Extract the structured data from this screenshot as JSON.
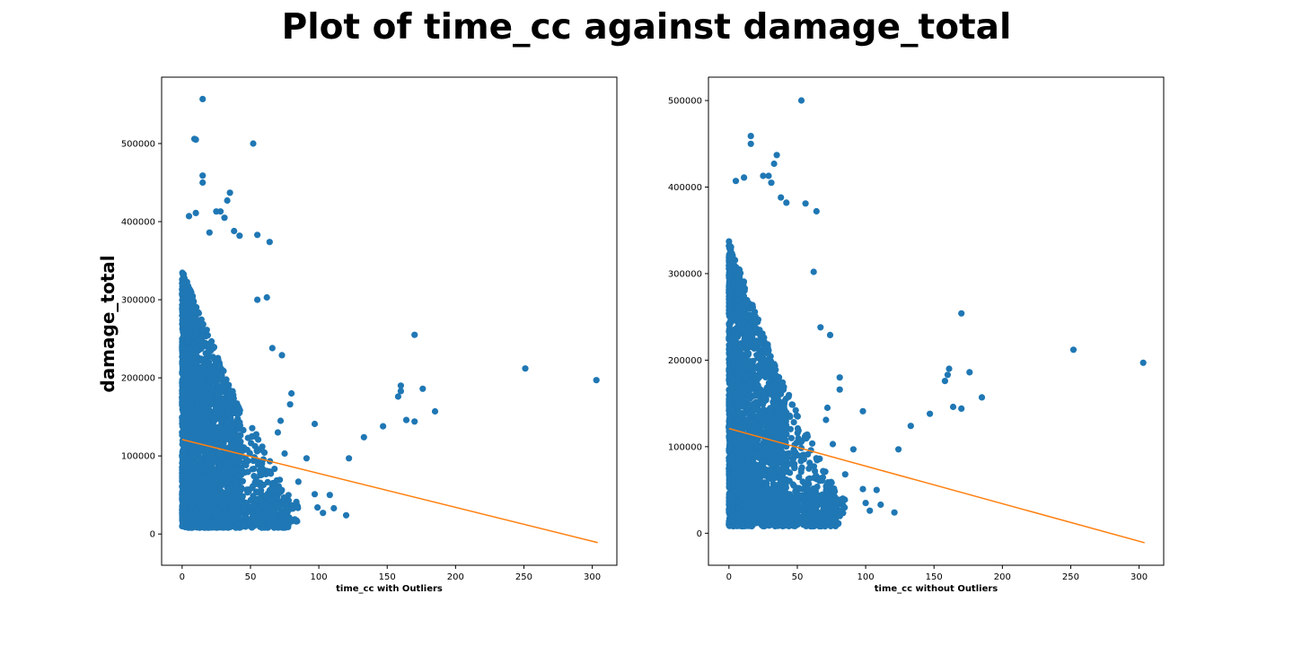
{
  "title": "Plot of time_cc against damage_total",
  "colors": {
    "points": "#1f77b4",
    "fit_line": "#ff7f0e"
  },
  "chart_data": [
    {
      "type": "scatter",
      "xlabel": "time_cc with Outliers",
      "ylabel": "damage_total",
      "xlim": [
        -15,
        318
      ],
      "ylim": [
        -40000,
        585000
      ],
      "xticks": [
        "0",
        "50",
        "100",
        "150",
        "200",
        "250",
        "300"
      ],
      "yticks": [
        "0",
        "100000",
        "200000",
        "300000",
        "400000",
        "500000"
      ],
      "grid": false,
      "fit_line": {
        "x": [
          0,
          304
        ],
        "y": [
          121000,
          -11000
        ]
      },
      "outliers": [
        {
          "x": 15,
          "y": 557000
        },
        {
          "x": 9,
          "y": 506000
        },
        {
          "x": 10,
          "y": 505000
        },
        {
          "x": 52,
          "y": 500000
        },
        {
          "x": 15,
          "y": 459000
        },
        {
          "x": 15,
          "y": 450000
        },
        {
          "x": 35,
          "y": 437000
        },
        {
          "x": 33,
          "y": 427000
        },
        {
          "x": 25,
          "y": 413000
        },
        {
          "x": 28,
          "y": 413000
        },
        {
          "x": 10,
          "y": 411000
        },
        {
          "x": 5,
          "y": 407000
        },
        {
          "x": 31,
          "y": 405000
        },
        {
          "x": 38,
          "y": 388000
        },
        {
          "x": 20,
          "y": 386000
        },
        {
          "x": 64,
          "y": 374000
        },
        {
          "x": 55,
          "y": 383000
        },
        {
          "x": 42,
          "y": 382000
        },
        {
          "x": 1,
          "y": 330000
        },
        {
          "x": 0,
          "y": 308000
        },
        {
          "x": 62,
          "y": 303000
        },
        {
          "x": 55,
          "y": 300000
        },
        {
          "x": 170,
          "y": 255000
        },
        {
          "x": 251,
          "y": 212000
        },
        {
          "x": 303,
          "y": 197000
        },
        {
          "x": 160,
          "y": 190000
        },
        {
          "x": 176,
          "y": 186000
        },
        {
          "x": 160,
          "y": 183000
        },
        {
          "x": 158,
          "y": 176000
        },
        {
          "x": 185,
          "y": 157000
        },
        {
          "x": 164,
          "y": 146000
        },
        {
          "x": 170,
          "y": 144000
        },
        {
          "x": 97,
          "y": 141000
        },
        {
          "x": 147,
          "y": 138000
        },
        {
          "x": 133,
          "y": 124000
        },
        {
          "x": 122,
          "y": 97000
        },
        {
          "x": 91,
          "y": 97000
        },
        {
          "x": 85,
          "y": 67000
        },
        {
          "x": 97,
          "y": 51000
        },
        {
          "x": 108,
          "y": 50000
        },
        {
          "x": 99,
          "y": 34000
        },
        {
          "x": 103,
          "y": 27000
        },
        {
          "x": 111,
          "y": 33000
        },
        {
          "x": 120,
          "y": 24000
        },
        {
          "x": 80,
          "y": 180000
        },
        {
          "x": 79,
          "y": 166000
        },
        {
          "x": 72,
          "y": 145000
        },
        {
          "x": 70,
          "y": 130000
        },
        {
          "x": 75,
          "y": 103000
        },
        {
          "x": 66,
          "y": 238000
        },
        {
          "x": 73,
          "y": 229000
        }
      ]
    },
    {
      "type": "scatter",
      "xlabel": "time_cc without Outliers",
      "ylabel": "",
      "xlim": [
        -15,
        318
      ],
      "ylim": [
        -37000,
        527000
      ],
      "xticks": [
        "0",
        "50",
        "100",
        "150",
        "200",
        "250",
        "300"
      ],
      "yticks": [
        "0",
        "100000",
        "200000",
        "300000",
        "400000",
        "500000"
      ],
      "grid": false,
      "fit_line": {
        "x": [
          0,
          304
        ],
        "y": [
          121000,
          -11000
        ]
      },
      "outliers": [
        {
          "x": 53,
          "y": 500000
        },
        {
          "x": 16,
          "y": 459000
        },
        {
          "x": 16,
          "y": 450000
        },
        {
          "x": 35,
          "y": 437000
        },
        {
          "x": 33,
          "y": 427000
        },
        {
          "x": 25,
          "y": 413000
        },
        {
          "x": 29,
          "y": 413000
        },
        {
          "x": 11,
          "y": 411000
        },
        {
          "x": 5,
          "y": 407000
        },
        {
          "x": 31,
          "y": 405000
        },
        {
          "x": 38,
          "y": 388000
        },
        {
          "x": 64,
          "y": 372000
        },
        {
          "x": 56,
          "y": 381000
        },
        {
          "x": 42,
          "y": 382000
        },
        {
          "x": 1,
          "y": 330000
        },
        {
          "x": 0,
          "y": 309000
        },
        {
          "x": 62,
          "y": 302000
        },
        {
          "x": 170,
          "y": 254000
        },
        {
          "x": 252,
          "y": 212000
        },
        {
          "x": 303,
          "y": 197000
        },
        {
          "x": 161,
          "y": 190000
        },
        {
          "x": 176,
          "y": 186000
        },
        {
          "x": 160,
          "y": 183000
        },
        {
          "x": 158,
          "y": 176000
        },
        {
          "x": 185,
          "y": 157000
        },
        {
          "x": 164,
          "y": 146000
        },
        {
          "x": 170,
          "y": 144000
        },
        {
          "x": 98,
          "y": 141000
        },
        {
          "x": 147,
          "y": 138000
        },
        {
          "x": 133,
          "y": 124000
        },
        {
          "x": 124,
          "y": 97000
        },
        {
          "x": 91,
          "y": 97000
        },
        {
          "x": 85,
          "y": 68000
        },
        {
          "x": 98,
          "y": 51000
        },
        {
          "x": 108,
          "y": 50000
        },
        {
          "x": 100,
          "y": 35000
        },
        {
          "x": 103,
          "y": 26000
        },
        {
          "x": 111,
          "y": 33000
        },
        {
          "x": 121,
          "y": 24000
        },
        {
          "x": 81,
          "y": 180000
        },
        {
          "x": 81,
          "y": 166000
        },
        {
          "x": 72,
          "y": 145000
        },
        {
          "x": 71,
          "y": 131000
        },
        {
          "x": 76,
          "y": 103000
        },
        {
          "x": 67,
          "y": 238000
        },
        {
          "x": 74,
          "y": 229000
        }
      ]
    }
  ]
}
